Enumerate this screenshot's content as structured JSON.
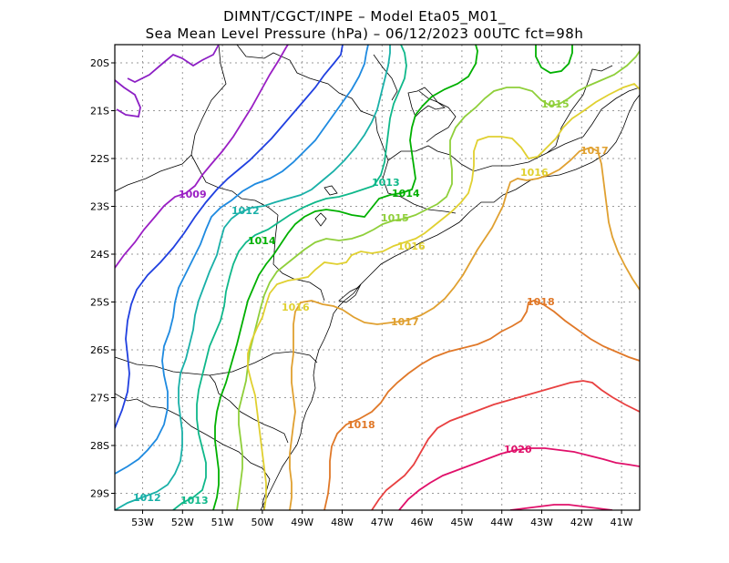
{
  "title_line1": "DIMNT/CGCT/INPE –  Model Eta05_M01_",
  "title_line2": "Sea Mean Level Pressure (hPa) – 06/12/2023 00UTC fct=98h",
  "axes": {
    "lon_labels": [
      "53W",
      "52W",
      "51W",
      "50W",
      "49W",
      "48W",
      "47W",
      "46W",
      "45W",
      "44W",
      "43W",
      "42W",
      "41W"
    ],
    "lat_labels": [
      "20S",
      "21S",
      "22S",
      "23S",
      "24S",
      "25S",
      "26S",
      "27S",
      "28S",
      "29S"
    ]
  },
  "contour_labels": [
    {
      "text": "1009",
      "color": "#9a1fc4"
    },
    {
      "text": "1012",
      "color": "#19b0a8"
    },
    {
      "text": "1012",
      "color": "#19b0a8"
    },
    {
      "text": "1013",
      "color": "#0fb88a"
    },
    {
      "text": "1013",
      "color": "#0fb88a"
    },
    {
      "text": "1014",
      "color": "#00b000"
    },
    {
      "text": "1014",
      "color": "#00b000"
    },
    {
      "text": "1015",
      "color": "#8fcf3a"
    },
    {
      "text": "1015",
      "color": "#8fcf3a"
    },
    {
      "text": "1016",
      "color": "#e0d030"
    },
    {
      "text": "1016",
      "color": "#e0d030"
    },
    {
      "text": "1016",
      "color": "#e0d030"
    },
    {
      "text": "1017",
      "color": "#e0a030"
    },
    {
      "text": "1017",
      "color": "#e0a030"
    },
    {
      "text": "1018",
      "color": "#e07828"
    },
    {
      "text": "1018",
      "color": "#e07828"
    },
    {
      "text": "1020",
      "color": "#e0106a"
    }
  ],
  "colors": {
    "c1008": "#8c1fc4",
    "c1010": "#2040e0",
    "c1011": "#1e8ae0",
    "c1012": "#19b0a8",
    "c1013": "#0fb88a",
    "c1014": "#00b000",
    "c1015": "#8fcf3a",
    "c1016": "#e0d030",
    "c1017": "#e0a030",
    "c1018": "#e07828",
    "c1019": "#e84040",
    "c1020": "#e0106a"
  }
}
